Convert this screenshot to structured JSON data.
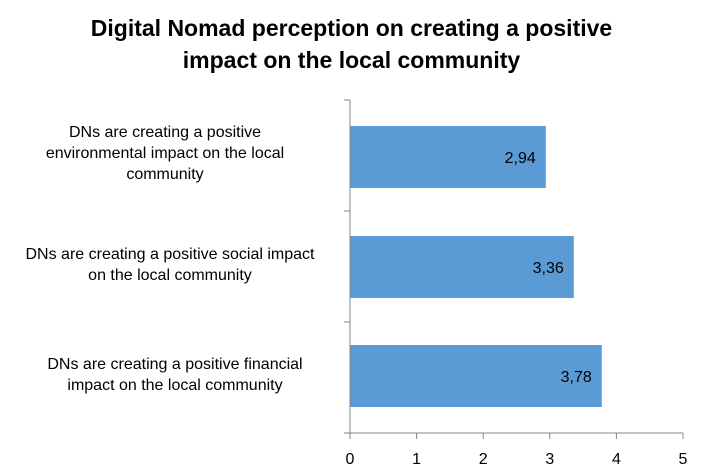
{
  "chart_data": {
    "type": "bar",
    "orientation": "horizontal",
    "title_lines": [
      "Digital Nomad perception on creating a positive",
      "impact on the local community"
    ],
    "categories": [
      "DNs are creating a positive\nenvironmental impact on the local\ncommunity",
      "DNs are creating a positive social impact\non the local community",
      "DNs are creating a positive financial\nimpact on the local community"
    ],
    "values": [
      2.94,
      3.36,
      3.78
    ],
    "data_labels": [
      "2,94",
      "3,36",
      "3,78"
    ],
    "x_ticks": [
      "0",
      "1",
      "2",
      "3",
      "4",
      "5"
    ],
    "xlim": [
      0,
      5
    ],
    "grid": false,
    "legend": "none",
    "bar_color": "#5b9bd5",
    "axis_color": "#868686"
  }
}
